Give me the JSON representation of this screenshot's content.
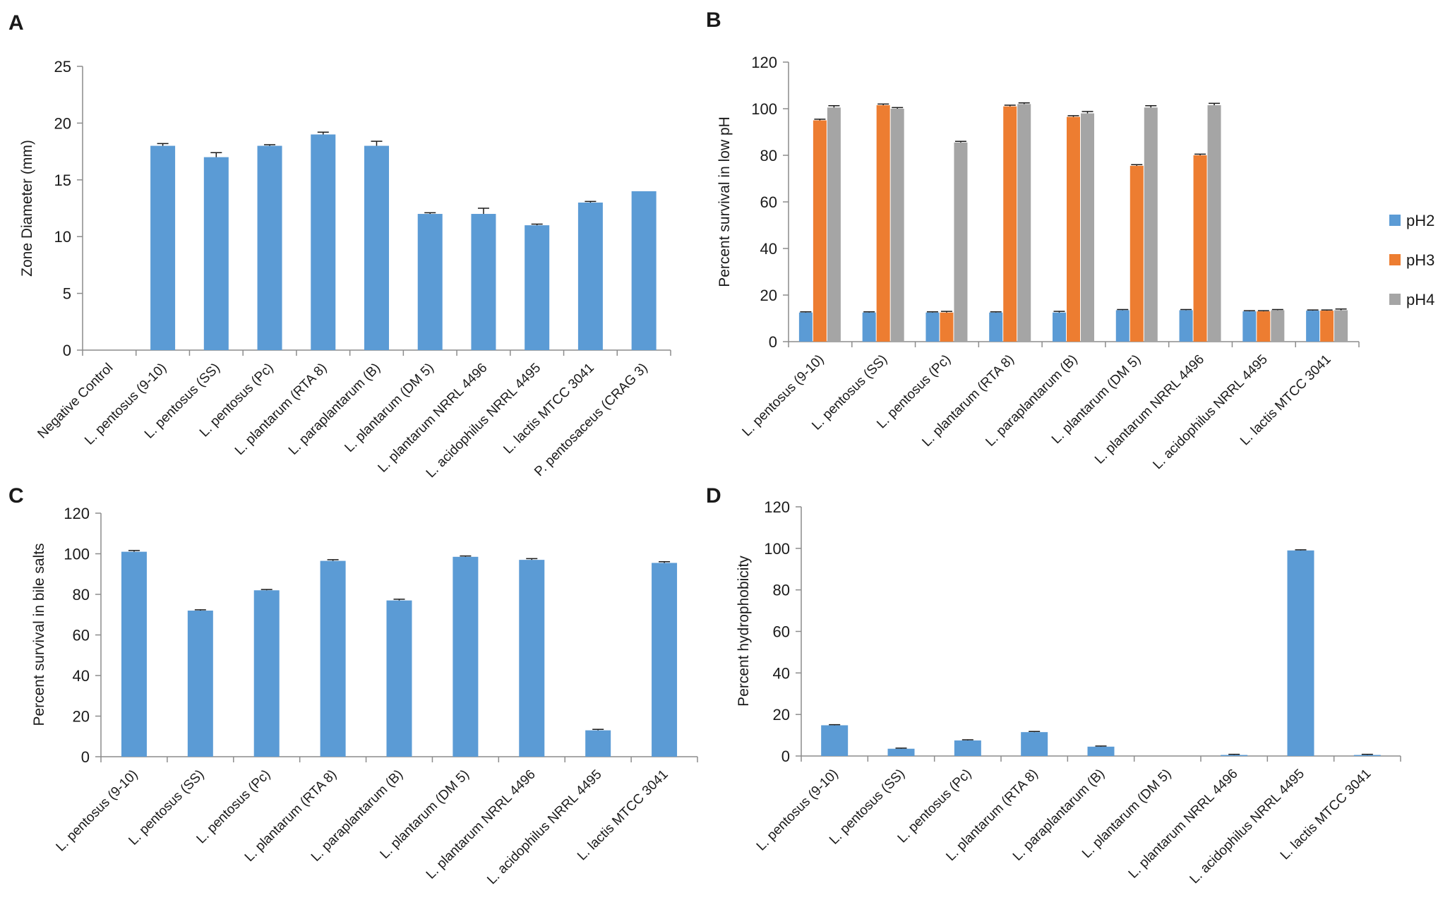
{
  "colors": {
    "pH2": "#5b9bd5",
    "pH3": "#ed7d31",
    "pH4": "#a5a5a5",
    "axis": "#8c8c8c",
    "errorbar": "#1a1a1a"
  },
  "chart_data": [
    {
      "panel": "A",
      "type": "bar",
      "title": "",
      "xlabel": "",
      "ylabel": "Zone Diameter (mm)",
      "ylim": [
        0,
        25
      ],
      "yticks": [
        0,
        5,
        10,
        15,
        20,
        25
      ],
      "categories": [
        "Negative Control",
        "L. pentosus (9-10)",
        "L. pentosus (SS)",
        "L. pentosus (Pc)",
        "L. plantarum (RTA 8)",
        "L. paraplantarum (B)",
        "L. plantarum (DM 5)",
        "L. plantarum NRRL 4496",
        "L. acidophilus NRRL 4495",
        "L. lactis MTCC 3041",
        "P. pentosaceus (CRAG 3)"
      ],
      "series": [
        {
          "name": "",
          "values": [
            0,
            18,
            17,
            18,
            19,
            18,
            12,
            12,
            11,
            13,
            14
          ],
          "errors": [
            0.1,
            0.2,
            0.4,
            0.1,
            0.2,
            0.4,
            0.1,
            0.5,
            0.1,
            0.1,
            0
          ]
        }
      ],
      "legend": null
    },
    {
      "panel": "B",
      "type": "bar",
      "title": "",
      "xlabel": "",
      "ylabel": "Percent survival in low pH",
      "ylim": [
        0,
        120
      ],
      "yticks": [
        0,
        20,
        40,
        60,
        80,
        100,
        120
      ],
      "categories": [
        "L. pentosus (9-10)",
        "L. pentosus (SS)",
        "L. pentosus (Pc)",
        "L. plantarum (RTA 8)",
        "L. paraplantarum (B)",
        "L. plantarum (DM 5)",
        "L. plantarum NRRL 4496",
        "L. acidophilus NRRL 4495",
        "L. lactis MTCC 3041"
      ],
      "series": [
        {
          "name": "pH2",
          "values": [
            12.5,
            12.5,
            12.5,
            12.5,
            12.5,
            13.5,
            13.5,
            13,
            13.3
          ],
          "errors": [
            0.3,
            0.3,
            0.3,
            0.3,
            0.5,
            0.3,
            0.3,
            0.3,
            0.3
          ]
        },
        {
          "name": "pH3",
          "values": [
            95,
            101.5,
            12.5,
            101,
            96.5,
            75.5,
            80,
            13,
            13.3
          ],
          "errors": [
            0.5,
            0.5,
            0.5,
            0.5,
            0.5,
            0.5,
            0.5,
            0.3,
            0.3
          ]
        },
        {
          "name": "pH4",
          "values": [
            100.5,
            100,
            85.5,
            102,
            98,
            100.5,
            101.5,
            13.5,
            13.5
          ],
          "errors": [
            0.8,
            0.5,
            0.5,
            0.5,
            0.8,
            0.8,
            0.8,
            0.3,
            0.5
          ]
        }
      ],
      "legend": "right"
    },
    {
      "panel": "C",
      "type": "bar",
      "title": "",
      "xlabel": "",
      "ylabel": "Percent survival in bile salts",
      "ylim": [
        0,
        120
      ],
      "yticks": [
        0,
        20,
        40,
        60,
        80,
        100,
        120
      ],
      "categories": [
        "L. pentosus (9-10)",
        "L. pentosus (SS)",
        "L. pentosus (Pc)",
        "L. plantarum (RTA 8)",
        "L. paraplantarum (B)",
        "L. plantarum (DM 5)",
        "L. plantarum NRRL 4496",
        "L. acidophilus NRRL 4495",
        "L. lactis MTCC 3041"
      ],
      "series": [
        {
          "name": "",
          "values": [
            101,
            72,
            82,
            96.5,
            77,
            98.5,
            97,
            13,
            95.5
          ],
          "errors": [
            0.6,
            0.4,
            0.4,
            0.6,
            0.6,
            0.4,
            0.6,
            0.5,
            0.6
          ]
        }
      ],
      "legend": null
    },
    {
      "panel": "D",
      "type": "bar",
      "title": "",
      "xlabel": "",
      "ylabel": "Percent hydrophobicity",
      "ylim": [
        0,
        120
      ],
      "yticks": [
        0,
        20,
        40,
        60,
        80,
        100,
        120
      ],
      "categories": [
        "L. pentosus (9-10)",
        "L. pentosus (SS)",
        "L. pentosus (Pc)",
        "L. plantarum (RTA 8)",
        "L. paraplantarum (B)",
        "L. plantarum (DM 5)",
        "L. plantarum NRRL 4496",
        "L. acidophilus NRRL 4495",
        "L. lactis MTCC 3041"
      ],
      "series": [
        {
          "name": "",
          "values": [
            14.8,
            3.5,
            7.5,
            11.5,
            4.5,
            0,
            0.5,
            99,
            0.5
          ],
          "errors": [
            0.3,
            0.3,
            0.3,
            0.3,
            0.3,
            0,
            0.3,
            0.3,
            0.3
          ]
        }
      ],
      "legend": null
    }
  ]
}
